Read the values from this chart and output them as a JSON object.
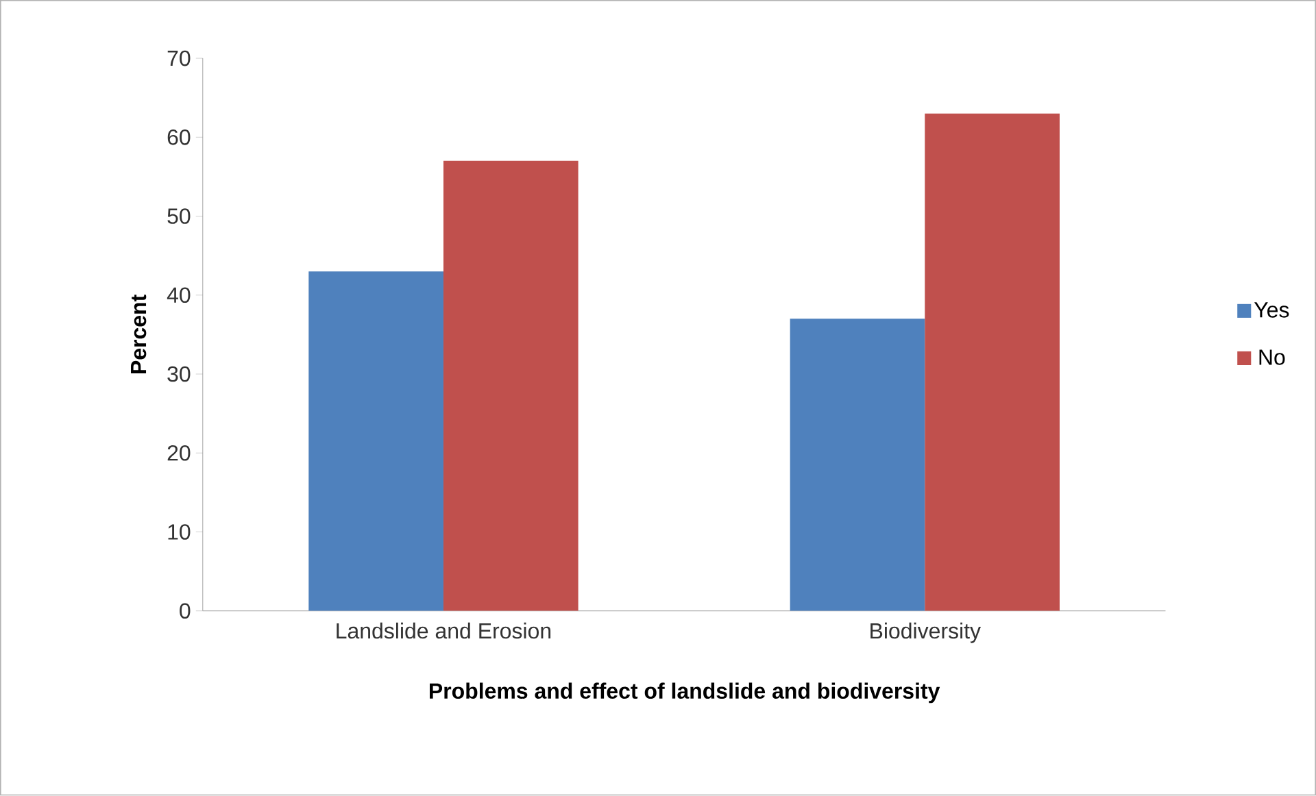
{
  "chart_data": {
    "type": "bar",
    "xlabel": "Problems and effect of landslide and biodiversity",
    "ylabel": "Percent",
    "categories": [
      "Landslide and Erosion",
      "Biodiversity"
    ],
    "series": [
      {
        "name": "Yes",
        "color": "#4f81bd",
        "values": [
          43,
          37
        ]
      },
      {
        "name": "No",
        "color": "#c0504d",
        "values": [
          57,
          63
        ]
      }
    ],
    "ylim": [
      0,
      70
    ],
    "yticks": [
      0,
      10,
      20,
      30,
      40,
      50,
      60,
      70
    ],
    "grid": false,
    "legend": "right"
  }
}
